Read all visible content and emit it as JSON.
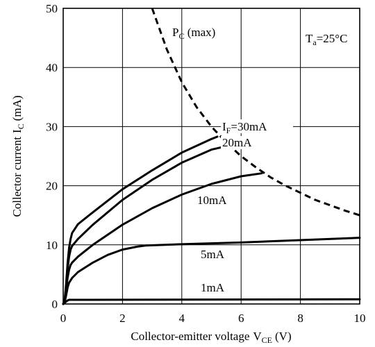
{
  "chart_data": {
    "type": "line",
    "xlabel": "Collector-emitter voltage",
    "xlabel_symbol": "V",
    "xlabel_sub": "CE",
    "xlabel_unit": "(V)",
    "ylabel": "Collector current",
    "ylabel_symbol": "I",
    "ylabel_sub": "C",
    "ylabel_unit": "(mA)",
    "xlim": [
      0,
      10
    ],
    "ylim": [
      0,
      50
    ],
    "xticks": [
      0,
      2,
      4,
      6,
      8,
      10
    ],
    "yticks": [
      0,
      10,
      20,
      30,
      40,
      50
    ],
    "grid": true,
    "ambient": {
      "symbol": "T",
      "sub": "a",
      "value": "=25°C"
    },
    "power_limit": {
      "symbol": "P",
      "sub": "C",
      "suffix": " (max)",
      "style": "dashed",
      "x": [
        3.0,
        3.5,
        4.0,
        4.5,
        5.0,
        5.5,
        6.0,
        6.5,
        7.0,
        7.5,
        8.0,
        8.5,
        9.0,
        9.5,
        10.0
      ],
      "y": [
        50,
        43,
        37.5,
        33.3,
        30,
        27.3,
        25,
        23.1,
        21.4,
        20,
        18.8,
        17.6,
        16.7,
        15.8,
        15
      ]
    },
    "series": [
      {
        "name": "1mA",
        "x": [
          0,
          0.05,
          0.1,
          0.15,
          0.2,
          10
        ],
        "y": [
          0,
          0.2,
          0.4,
          0.6,
          0.7,
          0.8
        ]
      },
      {
        "name": "5mA",
        "x": [
          0,
          0.05,
          0.1,
          0.15,
          0.2,
          0.25,
          0.3,
          0.5,
          1.0,
          1.5,
          2.0,
          2.5,
          2.8,
          4,
          6,
          8,
          10
        ],
        "y": [
          0,
          0.3,
          1.5,
          2.8,
          3.6,
          4.0,
          4.4,
          5.4,
          7.0,
          8.3,
          9.2,
          9.7,
          9.9,
          10.1,
          10.4,
          10.8,
          11.2
        ]
      },
      {
        "name": "10mA",
        "x": [
          0,
          0.05,
          0.1,
          0.15,
          0.2,
          0.25,
          0.3,
          0.5,
          1.0,
          2.0,
          3.0,
          4.0,
          5.0,
          6.0,
          6.7
        ],
        "y": [
          0,
          0.4,
          2.5,
          4.5,
          5.8,
          6.6,
          7.0,
          8.0,
          10.0,
          13.4,
          16.2,
          18.5,
          20.3,
          21.6,
          22.1
        ]
      },
      {
        "name": "20mA",
        "x": [
          0,
          0.05,
          0.1,
          0.15,
          0.2,
          0.25,
          0.3,
          0.5,
          1.0,
          2.0,
          3.0,
          4.0,
          5.0,
          5.6
        ],
        "y": [
          0,
          0.5,
          3.0,
          6.0,
          8.0,
          9.2,
          9.8,
          11.0,
          13.4,
          17.6,
          21.0,
          23.9,
          26.1,
          26.8
        ]
      },
      {
        "name": "I_F=30mA",
        "label_symbol": "I",
        "label_sub": "F",
        "label_value": "=30mA",
        "x": [
          0,
          0.05,
          0.1,
          0.15,
          0.2,
          0.25,
          0.3,
          0.5,
          1.0,
          2.0,
          3.0,
          4.0,
          5.0,
          5.2
        ],
        "y": [
          0,
          0.6,
          3.5,
          7.0,
          9.5,
          11.0,
          12.0,
          13.5,
          15.5,
          19.4,
          22.6,
          25.6,
          27.9,
          28.3
        ]
      }
    ]
  }
}
